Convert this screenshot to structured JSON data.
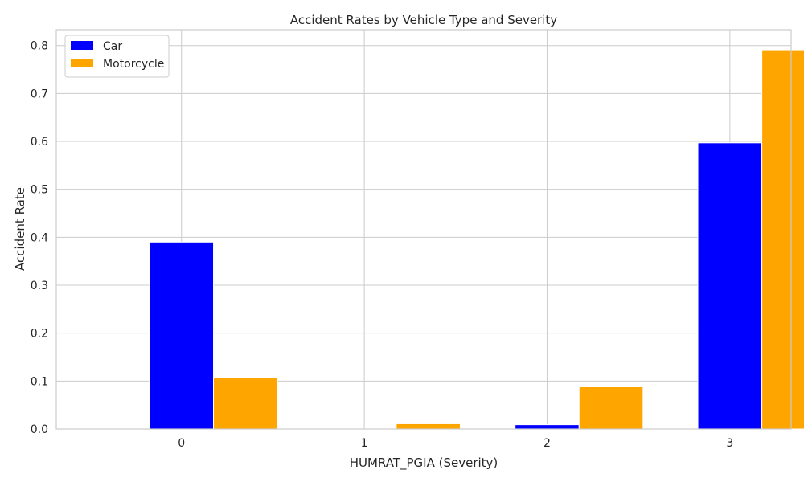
{
  "chart_data": {
    "type": "bar",
    "title": "Accident Rates by Vehicle Type and Severity",
    "xlabel": "HUMRAT_PGIA (Severity)",
    "ylabel": "Accident Rate",
    "categories": [
      "0",
      "1",
      "2",
      "3"
    ],
    "series": [
      {
        "name": "Car",
        "color": "#0000ff",
        "values": [
          0.39,
          0.0,
          0.009,
          0.597
        ]
      },
      {
        "name": "Motorcycle",
        "color": "#ffa500",
        "values": [
          0.108,
          0.011,
          0.088,
          0.791
        ]
      }
    ],
    "ylim": [
      0,
      0.833
    ],
    "yticks": [
      "0.0",
      "0.1",
      "0.2",
      "0.3",
      "0.4",
      "0.5",
      "0.6",
      "0.7",
      "0.8"
    ],
    "grid": true,
    "legend_position": "top-left"
  }
}
